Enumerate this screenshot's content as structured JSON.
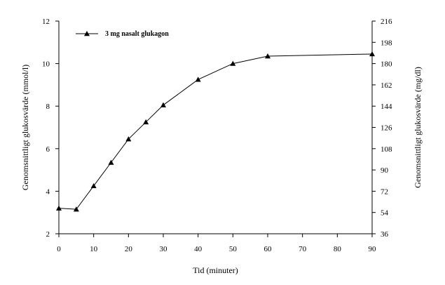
{
  "chart_data": {
    "type": "line",
    "x": [
      0,
      5,
      10,
      15,
      20,
      25,
      30,
      40,
      50,
      60,
      90
    ],
    "series": [
      {
        "name": "3 mg nasalt glukagon",
        "values": [
          3.2,
          3.15,
          4.25,
          5.35,
          6.45,
          7.25,
          8.05,
          9.25,
          10.0,
          10.35,
          10.45
        ],
        "color": "#000000",
        "marker": "triangle"
      }
    ],
    "xlabel": "Tid (minuter)",
    "ylabel": "Genomsnittligt glukosvärde (mmol/l)",
    "y2label": "Genomsnittligt glukosvärde (mg/dl)",
    "xlim": [
      0,
      90
    ],
    "ylim": [
      2,
      12
    ],
    "y2lim": [
      36,
      216
    ],
    "xticks": [
      "0",
      "10",
      "20",
      "30",
      "40",
      "50",
      "60",
      "70",
      "80",
      "90"
    ],
    "xtick_values": [
      0,
      10,
      20,
      30,
      40,
      50,
      60,
      70,
      80,
      90
    ],
    "yticks": [
      "2",
      "4",
      "6",
      "8",
      "10",
      "12"
    ],
    "ytick_values": [
      2,
      4,
      6,
      8,
      10,
      12
    ],
    "y2ticks": [
      "36",
      "54",
      "72",
      "90",
      "108",
      "126",
      "144",
      "162",
      "180",
      "198",
      "216"
    ],
    "y2tick_values": [
      36,
      54,
      72,
      90,
      108,
      126,
      144,
      162,
      180,
      198,
      216
    ],
    "grid": false,
    "legend": "top-left"
  }
}
